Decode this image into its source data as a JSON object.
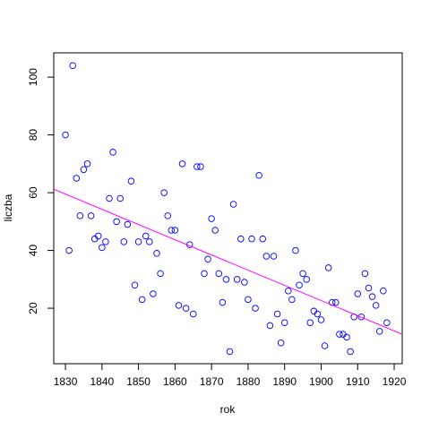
{
  "chart_data": {
    "type": "scatter",
    "x_label": "rok",
    "y_label": "liczba",
    "x": [
      1830,
      1831,
      1832,
      1833,
      1834,
      1835,
      1836,
      1837,
      1838,
      1839,
      1840,
      1841,
      1842,
      1843,
      1844,
      1845,
      1846,
      1847,
      1848,
      1849,
      1850,
      1851,
      1852,
      1853,
      1854,
      1855,
      1856,
      1857,
      1858,
      1859,
      1860,
      1861,
      1862,
      1863,
      1864,
      1865,
      1866,
      1867,
      1868,
      1869,
      1870,
      1871,
      1872,
      1873,
      1874,
      1875,
      1876,
      1877,
      1878,
      1879,
      1880,
      1881,
      1882,
      1883,
      1884,
      1885,
      1886,
      1887,
      1888,
      1889,
      1890,
      1891,
      1892,
      1893,
      1894,
      1895,
      1896,
      1897,
      1898,
      1899,
      1900,
      1901,
      1902,
      1903,
      1904,
      1905,
      1906,
      1907,
      1908,
      1909,
      1910,
      1911,
      1912,
      1913,
      1914,
      1915,
      1916,
      1917,
      1918
    ],
    "values": [
      80,
      40,
      104,
      65,
      52,
      68,
      70,
      52,
      44,
      45,
      41,
      43,
      58,
      74,
      50,
      58,
      43,
      49,
      64,
      28,
      43,
      23,
      45,
      43,
      25,
      39,
      32,
      60,
      52,
      47,
      47,
      21,
      70,
      20,
      42,
      18,
      69,
      69,
      32,
      37,
      51,
      47,
      32,
      22,
      30,
      5,
      56,
      30,
      44,
      29,
      23,
      44,
      20,
      66,
      44,
      38,
      14,
      38,
      18,
      8,
      15,
      26,
      23,
      40,
      28,
      32,
      30,
      15,
      19,
      18,
      16,
      7,
      34,
      22,
      22,
      11,
      11,
      10,
      5,
      17,
      25,
      17,
      32,
      27,
      24,
      21,
      12,
      26,
      15
    ],
    "color": "#0000ff",
    "trend": {
      "color": "#ff00ff",
      "x": [
        1830,
        1918
      ],
      "y": [
        59.5,
        13.2
      ]
    },
    "xlim": [
      1826.8,
      1922.2
    ],
    "ylim": [
      0.8,
      108.4
    ],
    "xticks": [
      1830,
      1840,
      1850,
      1860,
      1870,
      1880,
      1890,
      1900,
      1910,
      1920
    ],
    "yticks": [
      20,
      40,
      60,
      80,
      100
    ]
  }
}
